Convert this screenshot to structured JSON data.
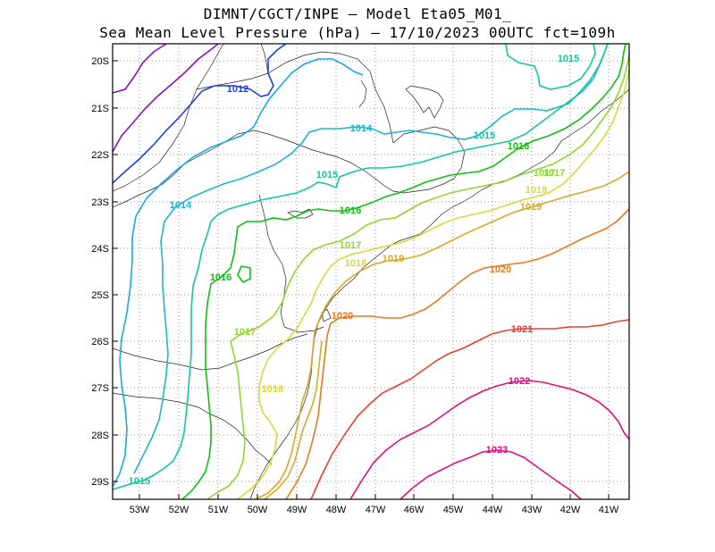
{
  "title_line1": "DIMNT/CGCT/INPE –  Model Eta05_M01_",
  "title_line2": "Sea Mean Level Pressure (hPa) – 17/10/2023 00UTC fct=109h",
  "y_ticks": [
    "20S",
    "21S",
    "22S",
    "23S",
    "24S",
    "25S",
    "26S",
    "27S",
    "28S",
    "29S"
  ],
  "x_ticks": [
    "53W",
    "52W",
    "51W",
    "50W",
    "49W",
    "48W",
    "47W",
    "46W",
    "45W",
    "44W",
    "43W",
    "42W",
    "41W"
  ],
  "contour_labels": [
    {
      "text": "1012",
      "color": "#1c3fe0"
    },
    {
      "text": "1014",
      "color": "#1cb8c8"
    },
    {
      "text": "1015",
      "color": "#10c8a0"
    },
    {
      "text": "1014",
      "color": "#1cb8c8"
    },
    {
      "text": "1015",
      "color": "#10c8a0"
    },
    {
      "text": "1016",
      "color": "#10c010"
    },
    {
      "text": "1015",
      "color": "#10c8a0"
    },
    {
      "text": "1016",
      "color": "#10c010"
    },
    {
      "text": "1016",
      "color": "#10c010"
    },
    {
      "text": "1017",
      "color": "#8cd82c"
    },
    {
      "text": "1017",
      "color": "#8cd82c"
    },
    {
      "text": "1018",
      "color": "#d8d83c"
    },
    {
      "text": "1019",
      "color": "#d8a828"
    },
    {
      "text": "1017",
      "color": "#8cd82c"
    },
    {
      "text": "1018",
      "color": "#d8d83c"
    },
    {
      "text": "1019",
      "color": "#d8a828"
    },
    {
      "text": "1020",
      "color": "#e87820"
    },
    {
      "text": "1020",
      "color": "#e87820"
    },
    {
      "text": "1015",
      "color": "#10c8a0"
    },
    {
      "text": "1018",
      "color": "#d8d83c"
    },
    {
      "text": "1021",
      "color": "#e84030"
    },
    {
      "text": "1022",
      "color": "#e0107a"
    },
    {
      "text": "1023",
      "color": "#e0107a"
    },
    {
      "text": "1017",
      "color": "#8cd82c"
    }
  ]
}
